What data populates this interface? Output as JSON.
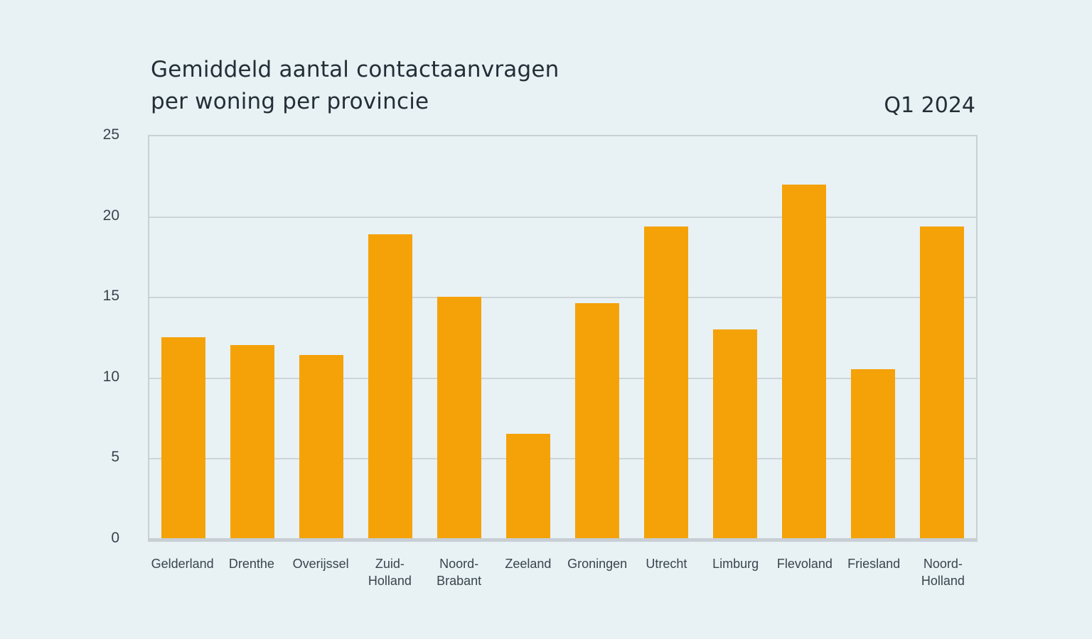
{
  "chart": {
    "title": "Gemiddeld aantal contactaanvragen\nper woning per provincie",
    "period": "Q1 2024"
  },
  "chart_data": {
    "type": "bar",
    "title": "Gemiddeld aantal contactaanvragen per woning per provincie",
    "subtitle": "Q1 2024",
    "categories": [
      "Gelderland",
      "Drenthe",
      "Overijssel",
      "Zuid-Holland",
      "Noord-Brabant",
      "Zeeland",
      "Groningen",
      "Utrecht",
      "Limburg",
      "Flevoland",
      "Friesland",
      "Noord-Holland"
    ],
    "tick_labels": [
      "Gelderland",
      "Drenthe",
      "Overijssel",
      "Zuid-\nHolland",
      "Noord-\nBrabant",
      "Zeeland",
      "Groningen",
      "Utrecht",
      "Limburg",
      "Flevoland",
      "Friesland",
      "Noord-\nHolland"
    ],
    "values": [
      12.5,
      12.0,
      11.4,
      18.9,
      15.0,
      6.5,
      14.6,
      19.4,
      13.0,
      22.0,
      10.5,
      19.4
    ],
    "xlabel": "",
    "ylabel": "",
    "ylim": [
      0,
      25
    ],
    "yticks": [
      0,
      5,
      10,
      15,
      20,
      25
    ],
    "grid": true,
    "legend": false,
    "colors": {
      "bar": "#F5A208",
      "background": "#E8F1F4",
      "gridline": "#CDD4DA",
      "axis": "#C7CED4",
      "title_text": "#232E37",
      "tick_text": "#39444D"
    }
  }
}
